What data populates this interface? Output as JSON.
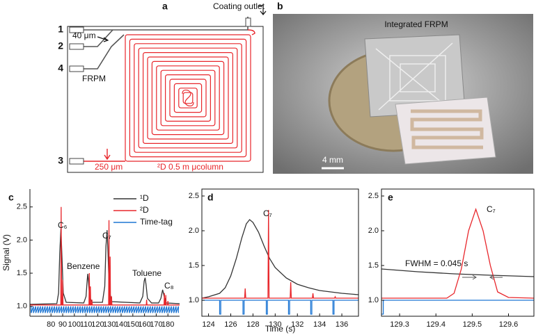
{
  "diagram": {
    "panel_label": "a",
    "coating_outlet": "Coating outlet",
    "ports": [
      "1",
      "2",
      "4",
      "3"
    ],
    "inlet_width": "40 μm",
    "frpm": "FRPM",
    "column_width": "250 μm",
    "column": "²D 0.5 m μcolumn"
  },
  "photo": {
    "panel_label": "b",
    "caption": "Integrated FRPM",
    "scale_bar": "4 mm"
  },
  "chart_data": [
    {
      "type": "line",
      "panel_label": "c",
      "ylabel": "Signal (V)",
      "frame": "left-bottom",
      "legend": "upper right",
      "xlim": [
        62,
        190
      ],
      "xticks": [
        80,
        90,
        100,
        110,
        120,
        130,
        140,
        150,
        160,
        170,
        180
      ],
      "ylim": [
        0.85,
        2.77
      ],
      "yticks": [
        {
          "value": 1,
          "label": "1.0"
        },
        1.5,
        {
          "value": 2,
          "label": "2.0"
        },
        2.5
      ],
      "annotations": [
        "C₆",
        "Benzene",
        "C₇",
        "Toluene",
        "C₈"
      ],
      "series": [
        {
          "name": "¹D",
          "color": "#333333",
          "x": [
            62,
            85,
            86.5,
            87.5,
            88.5,
            89.5,
            90.5,
            93,
            108,
            110,
            111,
            111.5,
            112.2,
            113,
            115,
            124,
            126,
            127,
            128,
            128.8,
            129.8,
            132,
            156,
            158.5,
            159.7,
            160.5,
            161.3,
            162.5,
            166,
            172,
            174,
            175.5,
            176.8,
            178.5,
            190
          ],
          "values": [
            1.03,
            1.04,
            1.2,
            1.8,
            2.17,
            1.7,
            1.2,
            1.06,
            1.05,
            1.15,
            1.4,
            1.49,
            1.35,
            1.15,
            1.06,
            1.06,
            1.3,
            1.9,
            2.15,
            1.8,
            1.25,
            1.07,
            1.05,
            1.15,
            1.38,
            1.43,
            1.33,
            1.12,
            1.05,
            1.05,
            1.12,
            1.25,
            1.15,
            1.05,
            1.04
          ]
        },
        {
          "name": "²D",
          "color": "#e8262b",
          "x": [
            62,
            88.4,
            88.7,
            89,
            89.7,
            90,
            90.3,
            112.5,
            112.8,
            113.1,
            113.4,
            113.7,
            114,
            114.7,
            115,
            115.3,
            129.3,
            129.6,
            129.9,
            130.3,
            130.6,
            130.9,
            131.5,
            131.8,
            132.1,
            161.5,
            161.8,
            162.1,
            176.7,
            177,
            177.3,
            177.9,
            178.2,
            178.5,
            179.7,
            180,
            180.3,
            190
          ],
          "values": [
            1.02,
            1.02,
            2.5,
            1.02,
            1.02,
            1.4,
            1.02,
            1.02,
            1.5,
            1.02,
            1.02,
            1.3,
            1.02,
            1.02,
            1.1,
            1.02,
            1.02,
            2.3,
            1.02,
            1.02,
            1.75,
            1.02,
            1.02,
            1.15,
            1.02,
            1.02,
            1.1,
            1.02,
            1.02,
            1.2,
            1.02,
            1.02,
            1.17,
            1.02,
            1.02,
            1.08,
            1.02,
            1.02
          ]
        },
        {
          "name": "Time-tag",
          "color": "#1f77d4",
          "x": [
            63,
            63,
            65,
            65,
            67,
            67,
            69,
            69,
            71,
            71,
            73,
            73,
            75,
            75,
            77,
            77,
            79,
            79,
            81,
            81,
            83,
            83,
            85,
            85,
            87,
            87,
            89,
            89,
            91,
            91,
            93,
            93,
            95,
            95,
            97,
            97,
            99,
            99,
            101,
            101,
            103,
            103,
            105,
            105,
            107,
            107,
            109,
            109,
            111,
            111,
            113,
            113,
            115,
            115,
            117,
            117,
            119,
            119,
            121,
            121,
            123,
            123,
            125,
            125,
            127,
            127,
            129,
            129,
            131,
            131,
            133,
            133,
            135,
            135,
            137,
            137,
            139,
            139,
            141,
            141,
            143,
            143,
            145,
            145,
            147,
            147,
            149,
            149,
            151,
            151,
            153,
            153,
            155,
            155,
            157,
            157,
            159,
            159,
            161,
            161,
            163,
            163,
            165,
            165,
            167,
            167,
            169,
            169,
            171,
            171,
            173,
            173,
            175,
            175,
            177,
            177,
            179,
            179,
            181,
            181,
            183,
            183,
            185,
            185,
            187,
            187,
            189,
            189
          ],
          "values": [
            1,
            0.9,
            1,
            0.9,
            1,
            0.9,
            1,
            0.9,
            1,
            0.9,
            1,
            0.9,
            1,
            0.9,
            1,
            0.9,
            1,
            0.9,
            1,
            0.9,
            1,
            0.9,
            1,
            0.9,
            1,
            0.9,
            1,
            0.9,
            1,
            0.9,
            1,
            0.9,
            1,
            0.9,
            1,
            0.9,
            1,
            0.9,
            1,
            0.9,
            1,
            0.9,
            1,
            0.9,
            1,
            0.9,
            1,
            0.9,
            1,
            0.9,
            1,
            0.9,
            1,
            0.9,
            1,
            0.9,
            1,
            0.9,
            1,
            0.9,
            1,
            0.9,
            1,
            0.9,
            1,
            0.9,
            1,
            0.9,
            1,
            0.9,
            1,
            0.9,
            1,
            0.9,
            1,
            0.9,
            1,
            0.9,
            1,
            0.9,
            1,
            0.9,
            1,
            0.9,
            1,
            0.9,
            1,
            0.9,
            1,
            0.9,
            1,
            0.9,
            1,
            0.9,
            1,
            0.9,
            1,
            0.9,
            1,
            0.9,
            1,
            0.9,
            1,
            0.9,
            1,
            0.9,
            1,
            0.9,
            1,
            0.9,
            1,
            0.9,
            1,
            0.9,
            1,
            0.9,
            1,
            0.9,
            1,
            0.9,
            1,
            0.9,
            1,
            0.9,
            1,
            0.9,
            1,
            0.9
          ]
        }
      ]
    },
    {
      "type": "line",
      "panel_label": "d",
      "xlabel": "Time (s)",
      "frame": "box",
      "xlim": [
        123.4,
        137.5
      ],
      "xticks": [
        124,
        126,
        128,
        130,
        132,
        134,
        136
      ],
      "ylim": [
        0.77,
        2.6
      ],
      "yticks": [
        {
          "value": 1,
          "label": "1.0"
        },
        1.5,
        {
          "value": 2,
          "label": "2.0"
        },
        2.5
      ],
      "annotations": [
        "C₇"
      ],
      "series": [
        {
          "color": "#333333",
          "x": [
            123.4,
            124,
            125,
            125.5,
            126,
            126.5,
            127,
            127.4,
            127.7,
            128,
            128.5,
            129,
            129.5,
            130,
            131,
            132,
            133,
            134,
            135,
            136,
            137.5
          ],
          "values": [
            1.03,
            1.05,
            1.1,
            1.18,
            1.35,
            1.6,
            1.9,
            2.1,
            2.16,
            2.12,
            1.98,
            1.78,
            1.6,
            1.47,
            1.32,
            1.23,
            1.18,
            1.14,
            1.12,
            1.1,
            1.08
          ]
        },
        {
          "color": "#e8262b",
          "x": [
            123.4,
            127.25,
            127.3,
            127.35,
            129.35,
            129.4,
            129.45,
            131.35,
            131.4,
            131.45,
            133.35,
            133.4,
            133.45,
            135.35,
            135.4,
            135.45,
            137.5
          ],
          "values": [
            1.03,
            1.03,
            1.17,
            1.03,
            1.03,
            2.3,
            1.03,
            1.03,
            1.26,
            1.03,
            1.03,
            1.1,
            1.03,
            1.03,
            1.05,
            1.03,
            1.03
          ]
        },
        {
          "color": "#1f77d4",
          "x": [
            123.4,
            125,
            125,
            125.1,
            125.1,
            127.1,
            127.1,
            127.2,
            127.2,
            129.2,
            129.2,
            129.3,
            129.3,
            131.2,
            131.2,
            131.3,
            131.3,
            133.2,
            133.2,
            133.3,
            133.3,
            135.2,
            135.2,
            135.3,
            135.3,
            137.5
          ],
          "values": [
            1,
            1,
            0.8,
            0.8,
            1,
            1,
            0.8,
            0.8,
            1,
            1,
            0.8,
            0.8,
            1,
            1,
            0.8,
            0.8,
            1,
            1,
            0.8,
            0.8,
            1,
            1,
            0.8,
            0.8,
            1,
            1
          ]
        }
      ]
    },
    {
      "type": "line",
      "panel_label": "e",
      "frame": "box",
      "xlim": [
        129.25,
        129.67
      ],
      "xticks": [
        129.3,
        129.4,
        129.5,
        129.6
      ],
      "ylim": [
        0.77,
        2.6
      ],
      "yticks": [
        {
          "value": 1,
          "label": "1.0"
        },
        1.5,
        {
          "value": 2,
          "label": "2.0"
        },
        2.5
      ],
      "annotations": [
        "C₇",
        "FWHM = 0.045 s"
      ],
      "series": [
        {
          "color": "#333333",
          "x": [
            129.25,
            129.35,
            129.45,
            129.55,
            129.67
          ],
          "values": [
            1.45,
            1.41,
            1.38,
            1.36,
            1.34
          ]
        },
        {
          "color": "#e8262b",
          "x": [
            129.25,
            129.43,
            129.45,
            129.47,
            129.49,
            129.51,
            129.53,
            129.55,
            129.57,
            129.6,
            129.67
          ],
          "values": [
            1.03,
            1.03,
            1.1,
            1.45,
            2.0,
            2.31,
            2.0,
            1.5,
            1.12,
            1.04,
            1.03
          ]
        },
        {
          "color": "#1f77d4",
          "x": [
            129.25,
            129.255,
            129.255,
            129.67
          ],
          "values": [
            0.8,
            0.8,
            1,
            1
          ]
        }
      ]
    }
  ]
}
